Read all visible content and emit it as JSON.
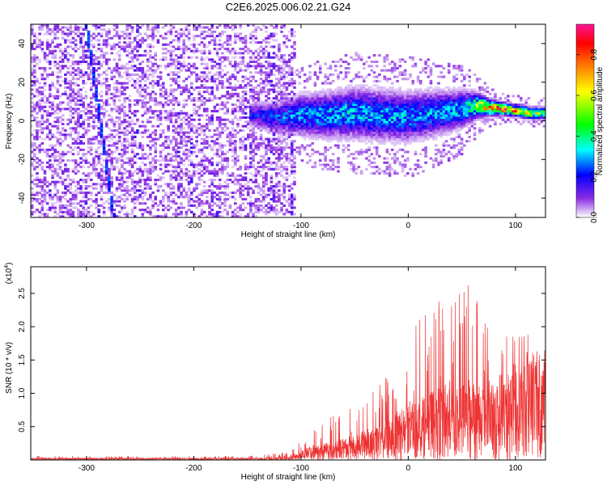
{
  "title": "C2E6.2025.006.02.21.G24",
  "chart_data": [
    {
      "type": "heatmap",
      "xlabel": "Height of straight line (km)",
      "ylabel": "Frequency (Hz)",
      "xlim": [
        -352,
        128
      ],
      "ylim": [
        -50,
        50
      ],
      "x_ticks": [
        -300,
        -200,
        -100,
        0,
        100
      ],
      "y_ticks": [
        -40,
        -20,
        0,
        20,
        40
      ],
      "x_tick_labels": [
        "-300",
        "-200",
        "-100",
        "0",
        "100"
      ],
      "y_tick_labels": [
        "-40",
        "-20",
        "0",
        "20",
        "40"
      ],
      "colorbar": {
        "label": "Normalized spectral amplitude",
        "range": [
          0.0,
          0.95
        ],
        "ticks": [
          0.0,
          0.2,
          0.4,
          0.6,
          0.8
        ],
        "tick_labels": [
          "0.0",
          "0.2",
          "0.4",
          "0.6",
          "0.8"
        ],
        "colormap": [
          "#ffffff",
          "#8a2be2",
          "#0000ff",
          "#00ffff",
          "#00ff00",
          "#ffff00",
          "#ff8000",
          "#ff0000",
          "#ff1493"
        ]
      },
      "noise_region_x": [
        -352,
        -105
      ],
      "streak": {
        "x_start": -300,
        "y_start": 50,
        "x_end": -275,
        "y_end": -48
      },
      "signal_band": [
        {
          "x": -145,
          "y": 3,
          "width": 6,
          "amp": 0.2
        },
        {
          "x": -120,
          "y": 2,
          "width": 8,
          "amp": 0.25
        },
        {
          "x": -100,
          "y": 3,
          "width": 10,
          "amp": 0.3
        },
        {
          "x": -75,
          "y": 3,
          "width": 11,
          "amp": 0.32
        },
        {
          "x": -50,
          "y": 4,
          "width": 12,
          "amp": 0.33
        },
        {
          "x": -25,
          "y": 3,
          "width": 12,
          "amp": 0.32
        },
        {
          "x": 0,
          "y": 2,
          "width": 12,
          "amp": 0.3
        },
        {
          "x": 25,
          "y": 4,
          "width": 11,
          "amp": 0.3
        },
        {
          "x": 50,
          "y": 6,
          "width": 9,
          "amp": 0.34
        },
        {
          "x": 65,
          "y": 8,
          "width": 6,
          "amp": 0.55
        },
        {
          "x": 75,
          "y": 7,
          "width": 4,
          "amp": 0.8
        },
        {
          "x": 90,
          "y": 6,
          "width": 3,
          "amp": 0.85
        },
        {
          "x": 105,
          "y": 5,
          "width": 3,
          "amp": 0.75
        },
        {
          "x": 115,
          "y": 4,
          "width": 3,
          "amp": 0.6
        },
        {
          "x": 128,
          "y": 4,
          "width": 3,
          "amp": 0.5
        }
      ]
    },
    {
      "type": "line",
      "xlabel": "Height of straight line (km)",
      "ylabel": "SNR (10 * v/v)",
      "y_multiplier_label": "(x10",
      "y_multiplier_exp": "4",
      "y_multiplier_close": ")",
      "xlim": [
        -352,
        128
      ],
      "ylim": [
        0,
        2.9
      ],
      "x_ticks": [
        -300,
        -200,
        -100,
        0,
        100
      ],
      "y_ticks": [
        0.5,
        1.0,
        1.5,
        2.0,
        2.5
      ],
      "x_tick_labels": [
        "-300",
        "-200",
        "-100",
        "0",
        "100"
      ],
      "y_tick_labels": [
        "0.5",
        "1.0",
        "1.5",
        "2.0",
        "2.5"
      ],
      "series": [
        {
          "color": "#ee3333",
          "envelope": [
            {
              "x": -352,
              "mean": 0.02,
              "peak": 0.06
            },
            {
              "x": -150,
              "mean": 0.02,
              "peak": 0.06
            },
            {
              "x": -110,
              "mean": 0.03,
              "peak": 0.12
            },
            {
              "x": -90,
              "mean": 0.15,
              "peak": 0.5
            },
            {
              "x": -70,
              "mean": 0.2,
              "peak": 0.7
            },
            {
              "x": -50,
              "mean": 0.25,
              "peak": 0.8
            },
            {
              "x": -30,
              "mean": 0.35,
              "peak": 1.1
            },
            {
              "x": -10,
              "mean": 0.5,
              "peak": 1.5
            },
            {
              "x": 10,
              "mean": 0.6,
              "peak": 2.3
            },
            {
              "x": 30,
              "mean": 0.75,
              "peak": 2.5
            },
            {
              "x": 50,
              "mean": 0.8,
              "peak": 2.9
            },
            {
              "x": 70,
              "mean": 0.8,
              "peak": 2.3
            },
            {
              "x": 85,
              "mean": 0.8,
              "peak": 1.8
            },
            {
              "x": 100,
              "mean": 0.9,
              "peak": 2.0
            },
            {
              "x": 115,
              "mean": 1.1,
              "peak": 1.9
            },
            {
              "x": 128,
              "mean": 1.1,
              "peak": 1.3
            }
          ]
        }
      ]
    }
  ]
}
